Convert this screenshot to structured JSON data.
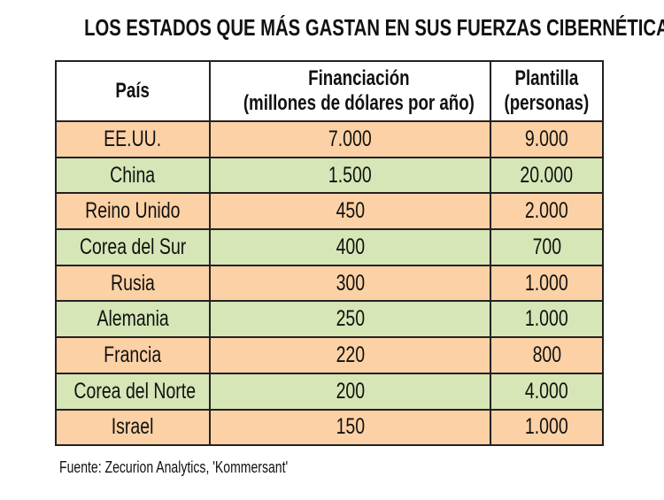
{
  "title": "LOS ESTADOS QUE MÁS GASTAN EN SUS FUERZAS CIBERNÉTICAS",
  "table": {
    "header": [
      [
        "País"
      ],
      [
        "Financiación",
        "(millones de dólares por año)"
      ],
      [
        "Plantilla",
        "(personas)"
      ]
    ],
    "rows": [
      [
        "EE.UU.",
        "7.000",
        "9.000"
      ],
      [
        "China",
        "1.500",
        "20.000"
      ],
      [
        "Reino Unido",
        "450",
        "2.000"
      ],
      [
        "Corea del Sur",
        "400",
        "700"
      ],
      [
        "Rusia",
        "300",
        "1.000"
      ],
      [
        "Alemania",
        "250",
        "1.000"
      ],
      [
        "Francia",
        "220",
        "800"
      ],
      [
        "Corea del Norte",
        "200",
        "4.000"
      ],
      [
        "Israel",
        "150",
        "1.000"
      ]
    ]
  },
  "source": "Fuente: Zecurion Analytics, 'Kommersant'"
}
